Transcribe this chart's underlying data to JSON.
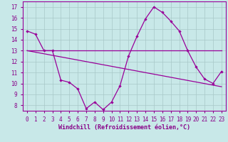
{
  "x": [
    0,
    1,
    2,
    3,
    4,
    5,
    6,
    7,
    8,
    9,
    10,
    11,
    12,
    13,
    14,
    15,
    16,
    17,
    18,
    19,
    20,
    21,
    22,
    23
  ],
  "line1": [
    14.8,
    14.5,
    13.0,
    13.0,
    10.3,
    10.1,
    9.5,
    7.7,
    8.3,
    7.6,
    8.3,
    9.8,
    12.5,
    14.3,
    15.9,
    17.0,
    16.5,
    15.7,
    14.8,
    13.0,
    11.5,
    10.4,
    10.0,
    11.1
  ],
  "line2_x": [
    0,
    23
  ],
  "line2_y": [
    13.0,
    13.0
  ],
  "line3_x": [
    0,
    23
  ],
  "line3_y": [
    13.0,
    9.7
  ],
  "line_color": "#990099",
  "bg_color": "#c8e8e8",
  "grid_color": "#a8c8c8",
  "text_color": "#880088",
  "xlabel": "Windchill (Refroidissement éolien,°C)",
  "ylim": [
    7.5,
    17.5
  ],
  "xlim": [
    -0.5,
    23.5
  ],
  "yticks": [
    8,
    9,
    10,
    11,
    12,
    13,
    14,
    15,
    16,
    17
  ],
  "xticks": [
    0,
    1,
    2,
    3,
    4,
    5,
    6,
    7,
    8,
    9,
    10,
    11,
    12,
    13,
    14,
    15,
    16,
    17,
    18,
    19,
    20,
    21,
    22,
    23
  ]
}
